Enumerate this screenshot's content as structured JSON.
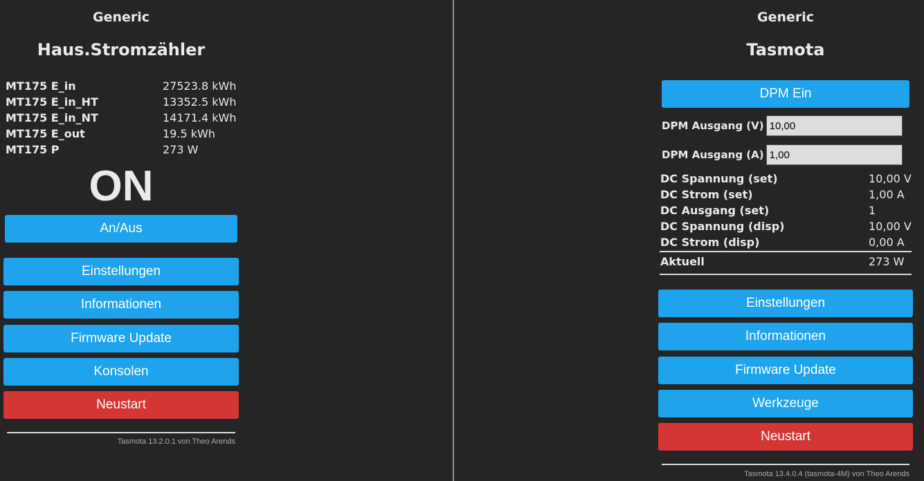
{
  "left": {
    "device_type": "Generic",
    "device_name": "Haus.Stromzähler",
    "sensors": [
      {
        "label": "MT175 E_in",
        "value": "27523.8 kWh"
      },
      {
        "label": "MT175 E_in_HT",
        "value": "13352.5 kWh"
      },
      {
        "label": "MT175 E_in_NT",
        "value": "14171.4 kWh"
      },
      {
        "label": "MT175 E_out",
        "value": "19.5 kWh"
      },
      {
        "label": "MT175 P",
        "value": "273 W"
      }
    ],
    "power_state": "ON",
    "toggle_label": "An/Aus",
    "menu": {
      "settings": "Einstellungen",
      "info": "Informationen",
      "firmware": "Firmware Update",
      "console": "Konsolen",
      "restart": "Neustart"
    },
    "footer": "Tasmota 13.2.0.1 von Theo Arends"
  },
  "right": {
    "device_type": "Generic",
    "device_name": "Tasmota",
    "dpm_button": "DPM Ein",
    "voltage_field": {
      "label": "DPM Ausgang (V)",
      "value": "10,00"
    },
    "current_field": {
      "label": "DPM Ausgang (A)",
      "value": "1,00"
    },
    "sensors": [
      {
        "label": "DC Spannung (set)",
        "value": "10,00 V"
      },
      {
        "label": "DC Strom (set)",
        "value": "1,00 A"
      },
      {
        "label": "DC Ausgang (set)",
        "value": "1"
      },
      {
        "label": "DC Spannung (disp)",
        "value": "10,00 V"
      },
      {
        "label": "DC Strom (disp)",
        "value": "0,00 A"
      }
    ],
    "actual": {
      "label": "Aktuell",
      "value": "273 W"
    },
    "menu": {
      "settings": "Einstellungen",
      "info": "Informationen",
      "firmware": "Firmware Update",
      "tools": "Werkzeuge",
      "restart": "Neustart"
    },
    "footer": "Tasmota 13.4.0.4 (tasmota-4M) von Theo Arends"
  },
  "colors": {
    "background": "#252525",
    "button_blue": "#1fa3ec",
    "button_red": "#d43535",
    "text": "#eaeaea"
  }
}
